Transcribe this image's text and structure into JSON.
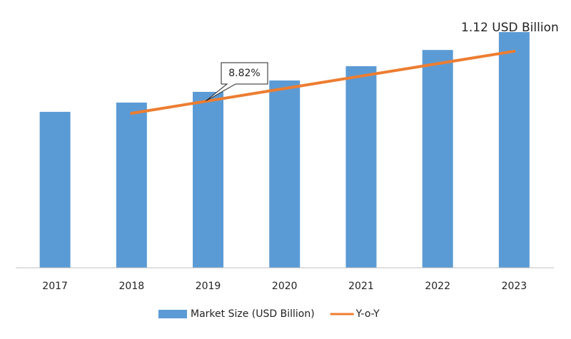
{
  "chart_data": {
    "type": "bar",
    "categories": [
      "2017",
      "2018",
      "2019",
      "2020",
      "2021",
      "2022",
      "2023"
    ],
    "series": [
      {
        "name": "Market Size (USD Billion)",
        "type": "bar",
        "color": "#5b9bd5",
        "values": [
          0.741,
          0.785,
          0.836,
          0.89,
          0.958,
          1.035,
          1.12
        ],
        "value_labels": [
          null,
          null,
          null,
          null,
          null,
          null,
          "1.12 USD Billion"
        ]
      },
      {
        "name": "Y-o-Y",
        "type": "line",
        "color": "#ed7d31",
        "values": [
          null,
          0.734,
          0.793,
          0.852,
          0.911,
          0.97,
          1.029
        ]
      }
    ],
    "annotations": [
      {
        "text": "8.82%",
        "category_index": 2
      }
    ],
    "ylim": [
      0,
      1.2
    ]
  }
}
